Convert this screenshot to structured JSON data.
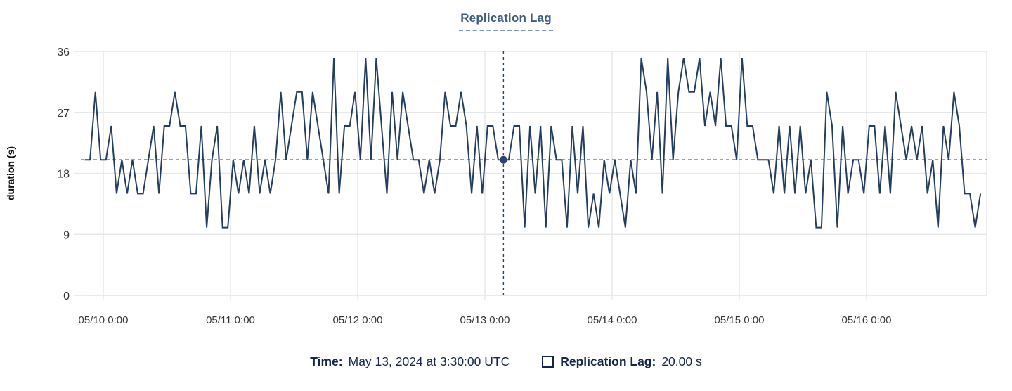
{
  "title": "Replication Lag",
  "axes": {
    "y_label": "duration (s)",
    "y_ticks": [
      36,
      27,
      18,
      9,
      0
    ],
    "x_ticks": [
      "05/10 0:00",
      "05/11 0:00",
      "05/12 0:00",
      "05/13 0:00",
      "05/14 0:00",
      "05/15 0:00",
      "05/16 0:00"
    ]
  },
  "tooltip_footer": {
    "time_label": "Time:",
    "time_value": "May 13, 2024 at 3:30:00 UTC",
    "series_label": "Replication Lag:",
    "series_value": "20.00 s"
  },
  "colors": {
    "line": "#243e5f",
    "title": "#3d5c80",
    "grid": "#e7e8ea",
    "crosshair": "#2b4467",
    "tick_text": "#333538",
    "legend_text": "#16264a"
  },
  "chart_data": {
    "type": "line",
    "title": "Replication Lag",
    "xlabel": "",
    "ylabel": "duration (s)",
    "ylim": [
      0,
      36
    ],
    "grid": true,
    "legend_position": "bottom",
    "x_interval": "1 hour",
    "x_range": [
      "05/09 20:30",
      "05/16 21:30"
    ],
    "x_tick_labels": [
      "05/10 0:00",
      "05/11 0:00",
      "05/12 0:00",
      "05/13 0:00",
      "05/14 0:00",
      "05/15 0:00",
      "05/16 0:00"
    ],
    "y_tick_values": [
      0,
      9,
      18,
      27,
      36
    ],
    "series_name": "Replication Lag",
    "values": [
      20,
      20,
      30,
      20,
      20,
      25,
      15,
      20,
      15,
      20,
      15,
      15,
      20,
      25,
      15,
      25,
      25,
      30,
      25,
      25,
      15,
      15,
      25,
      10,
      20,
      25,
      10,
      10,
      20,
      15,
      20,
      15,
      25,
      15,
      20,
      15,
      20,
      30,
      20,
      25,
      30,
      30,
      20,
      30,
      25,
      20,
      15,
      35,
      15,
      25,
      25,
      30,
      20,
      35,
      20,
      35,
      25,
      15,
      30,
      20,
      30,
      25,
      20,
      20,
      15,
      20,
      15,
      20,
      30,
      25,
      25,
      30,
      25,
      15,
      25,
      15,
      25,
      25,
      20,
      20,
      20,
      25,
      25,
      10,
      25,
      15,
      25,
      10,
      25,
      20,
      20,
      10,
      25,
      15,
      25,
      10,
      15,
      10,
      20,
      15,
      20,
      15,
      10,
      20,
      15,
      35,
      30,
      20,
      30,
      15,
      35,
      20,
      30,
      35,
      30,
      30,
      35,
      25,
      30,
      25,
      35,
      25,
      25,
      20,
      35,
      25,
      25,
      20,
      20,
      20,
      15,
      25,
      15,
      25,
      15,
      25,
      15,
      20,
      10,
      10,
      30,
      25,
      10,
      25,
      15,
      20,
      20,
      15,
      25,
      25,
      15,
      25,
      15,
      30,
      25,
      20,
      25,
      20,
      25,
      15,
      20,
      10,
      25,
      20,
      30,
      25,
      15,
      15,
      10,
      15
    ],
    "crosshair": {
      "index": 79,
      "value": 20.0,
      "time": "May 13, 2024 at 3:30:00 UTC",
      "value_label": "20.00 s"
    }
  }
}
